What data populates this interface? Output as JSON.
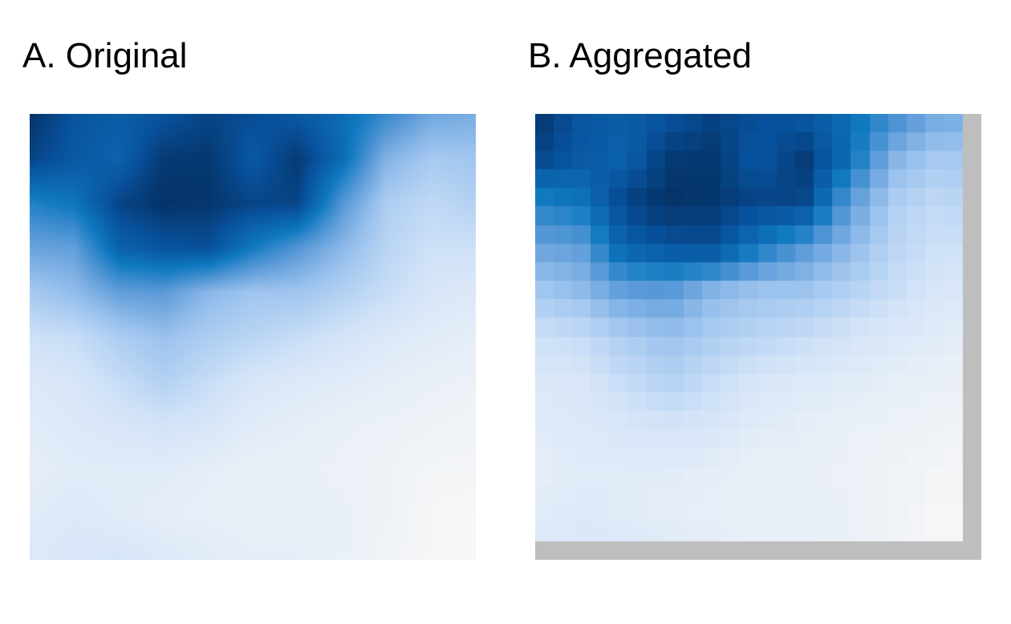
{
  "chart_data": [
    {
      "type": "heatmap",
      "title": "A. Original",
      "render": "smooth",
      "colormap": [
        "#f7f7f7",
        "#d2e3f8",
        "#9cc3ee",
        "#5a9ad8",
        "#0f78bf",
        "#08519c",
        "#03254f"
      ],
      "anchor_grid": [
        [
          0.95,
          0.82,
          0.78,
          0.82,
          0.88,
          0.85,
          0.8,
          0.72,
          0.58,
          0.45,
          0.42
        ],
        [
          0.88,
          0.8,
          0.76,
          0.92,
          0.93,
          0.8,
          0.92,
          0.72,
          0.4,
          0.3,
          0.32
        ],
        [
          0.62,
          0.68,
          0.88,
          0.95,
          0.93,
          0.88,
          0.88,
          0.52,
          0.28,
          0.22,
          0.26
        ],
        [
          0.46,
          0.48,
          0.76,
          0.82,
          0.84,
          0.66,
          0.52,
          0.38,
          0.24,
          0.18,
          0.18
        ],
        [
          0.3,
          0.36,
          0.48,
          0.5,
          0.38,
          0.32,
          0.32,
          0.26,
          0.2,
          0.14,
          0.12
        ],
        [
          0.18,
          0.2,
          0.28,
          0.34,
          0.28,
          0.24,
          0.2,
          0.16,
          0.12,
          0.1,
          0.08
        ],
        [
          0.12,
          0.14,
          0.2,
          0.26,
          0.2,
          0.14,
          0.12,
          0.1,
          0.08,
          0.06,
          0.05
        ],
        [
          0.1,
          0.12,
          0.14,
          0.16,
          0.14,
          0.1,
          0.08,
          0.06,
          0.05,
          0.04,
          0.03
        ],
        [
          0.08,
          0.1,
          0.1,
          0.1,
          0.08,
          0.06,
          0.06,
          0.05,
          0.04,
          0.02,
          0.02
        ],
        [
          0.1,
          0.12,
          0.1,
          0.08,
          0.07,
          0.06,
          0.06,
          0.06,
          0.04,
          0.01,
          0.0
        ],
        [
          0.12,
          0.14,
          0.15,
          0.12,
          0.1,
          0.08,
          0.08,
          0.06,
          0.03,
          0.01,
          0.0
        ]
      ]
    },
    {
      "type": "heatmap",
      "title": "B. Aggregated",
      "render": "blocky",
      "cells_x": 23,
      "cells_y": 23,
      "colormap": [
        "#f7f7f7",
        "#d2e3f8",
        "#9cc3ee",
        "#5a9ad8",
        "#0f78bf",
        "#08519c",
        "#03254f"
      ],
      "anchor_grid": [
        [
          0.95,
          0.82,
          0.78,
          0.82,
          0.88,
          0.85,
          0.8,
          0.72,
          0.58,
          0.45,
          0.42
        ],
        [
          0.88,
          0.8,
          0.76,
          0.92,
          0.93,
          0.8,
          0.92,
          0.72,
          0.4,
          0.3,
          0.32
        ],
        [
          0.62,
          0.68,
          0.88,
          0.95,
          0.93,
          0.88,
          0.88,
          0.52,
          0.28,
          0.22,
          0.26
        ],
        [
          0.46,
          0.48,
          0.76,
          0.82,
          0.84,
          0.66,
          0.52,
          0.38,
          0.24,
          0.18,
          0.18
        ],
        [
          0.3,
          0.36,
          0.48,
          0.5,
          0.38,
          0.32,
          0.32,
          0.26,
          0.2,
          0.14,
          0.12
        ],
        [
          0.18,
          0.2,
          0.28,
          0.34,
          0.28,
          0.24,
          0.2,
          0.16,
          0.12,
          0.1,
          0.08
        ],
        [
          0.12,
          0.14,
          0.2,
          0.26,
          0.2,
          0.14,
          0.12,
          0.1,
          0.08,
          0.06,
          0.05
        ],
        [
          0.1,
          0.12,
          0.14,
          0.16,
          0.14,
          0.1,
          0.08,
          0.06,
          0.05,
          0.04,
          0.03
        ],
        [
          0.08,
          0.1,
          0.1,
          0.1,
          0.08,
          0.06,
          0.06,
          0.05,
          0.04,
          0.02,
          0.02
        ],
        [
          0.1,
          0.12,
          0.1,
          0.08,
          0.07,
          0.06,
          0.06,
          0.06,
          0.04,
          0.01,
          0.0
        ],
        [
          0.12,
          0.14,
          0.15,
          0.12,
          0.1,
          0.08,
          0.08,
          0.06,
          0.03,
          0.01,
          0.0
        ]
      ],
      "nodata_color": "#bebebe"
    }
  ]
}
